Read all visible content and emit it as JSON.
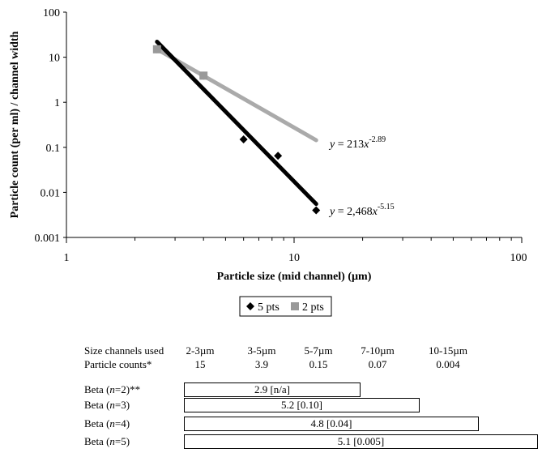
{
  "chart_data": {
    "type": "scatter",
    "x_scale": "log",
    "y_scale": "log",
    "xlim": [
      1,
      100
    ],
    "ylim": [
      0.001,
      100
    ],
    "xlabel": "Particle size (mid channel) (µm)",
    "ylabel": "Particle count (per ml) / channel width",
    "x_ticks": [
      "1",
      "10",
      "100"
    ],
    "y_ticks": [
      "0.001",
      "0.01",
      "0.1",
      "1",
      "10",
      "100"
    ],
    "legend_position": "bottom-center",
    "series": [
      {
        "name": "5 pts",
        "marker": "diamond",
        "color": "#000000",
        "x": [
          2.5,
          4,
          6,
          8.5,
          12.5
        ],
        "y": [
          15,
          3.9,
          0.15,
          0.065,
          0.004
        ],
        "fit": {
          "coef": 2468,
          "exp": -5.15,
          "x_range": [
            2.5,
            12.5
          ],
          "label_prefix": "y = 2,468x",
          "label_exp": "-5.15"
        }
      },
      {
        "name": "2 pts",
        "marker": "square",
        "color": "#999999",
        "x": [
          2.5,
          4
        ],
        "y": [
          15,
          3.9
        ],
        "fit": {
          "coef": 213,
          "exp": -2.89,
          "x_range": [
            2.5,
            12.5
          ],
          "label_prefix": "y = 213x",
          "label_exp": "-2.89"
        }
      }
    ]
  },
  "table": {
    "header_label": "Size channels used",
    "counts_label": "Particle counts*",
    "channels": [
      "2-3µm",
      "3-5µm",
      "5-7µm",
      "7-10µm",
      "10-15µm"
    ],
    "counts": [
      "15",
      "3.9",
      "0.15",
      "0.07",
      "0.004"
    ]
  },
  "beta": [
    {
      "label": "Beta (n=2)**",
      "text": "2.9 [n/a]",
      "channels": 2
    },
    {
      "label": "Beta (n=3)",
      "text": "5.2 [0.10]",
      "channels": 3
    },
    {
      "label": "Beta (n=4)",
      "text": "4.8 [0.04]",
      "channels": 4
    },
    {
      "label": "Beta (n=5)",
      "text": "5.1 [0.005]",
      "channels": 5
    }
  ]
}
